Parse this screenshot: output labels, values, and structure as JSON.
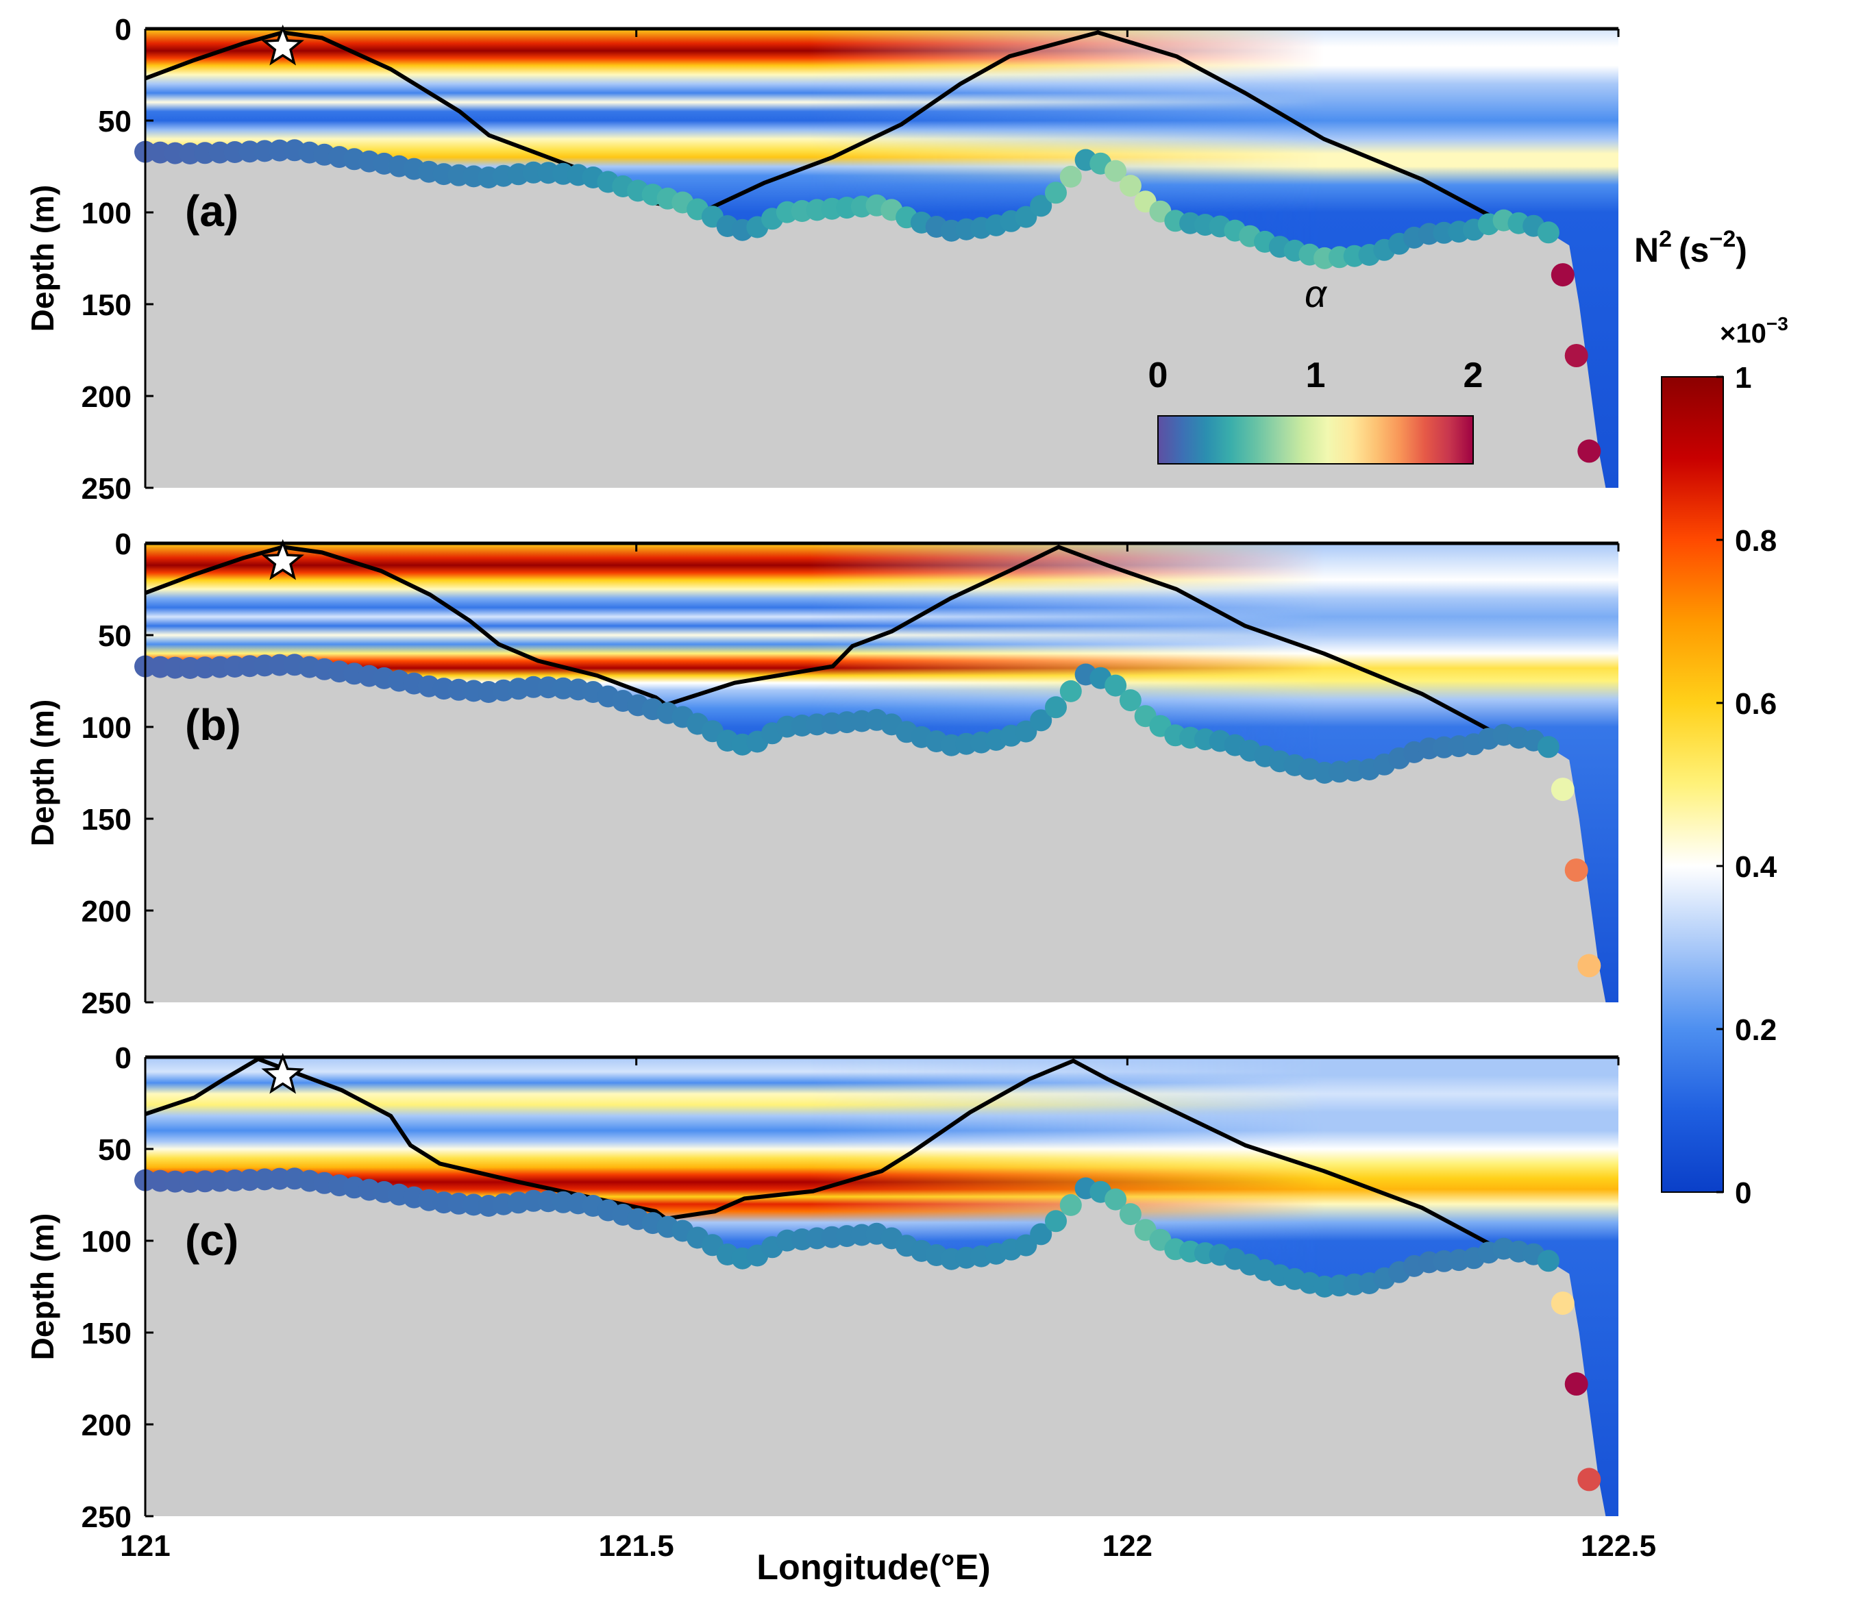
{
  "chart_data": {
    "type": "heatmap",
    "x_label": "Longitude(°E)",
    "y_label": "Depth (m)",
    "x_range": [
      121,
      122.5
    ],
    "y_range": [
      0,
      250
    ],
    "x_ticks": [
      "121",
      "121.5",
      "122",
      "122.5"
    ],
    "y_ticks": [
      "0",
      "50",
      "100",
      "150",
      "200",
      "250"
    ],
    "colorbar": {
      "title_main": "N",
      "title_sup": "2",
      "title_units": "(s",
      "title_units_sup": "−2",
      "title_close": ")",
      "scale_prefix": "×10",
      "scale_exp": "−3",
      "range": [
        0,
        1
      ],
      "tick_labels": [
        "0",
        "0.2",
        "0.4",
        "0.6",
        "0.8",
        "1"
      ],
      "colormap": [
        "#0a3fc8",
        "#1f5fe0",
        "#4d8ff0",
        "#a8c8f8",
        "#ffffff",
        "#fff27a",
        "#ffd11a",
        "#ff9a00",
        "#ff4a00",
        "#c80000",
        "#8c0000"
      ]
    },
    "alpha_legend": {
      "label": "α",
      "range": [
        0,
        2
      ],
      "tick_labels": [
        "0",
        "1",
        "2"
      ],
      "colormap": [
        "#5e4fa2",
        "#3d6fb5",
        "#2b8fb0",
        "#3aaeab",
        "#66c2a5",
        "#9bd6a4",
        "#cceba0",
        "#f2f8b0",
        "#fee89a",
        "#fdc273",
        "#f89457",
        "#e65a47",
        "#c8364e",
        "#9e0142"
      ]
    },
    "bathymetry": [
      [
        121.0,
        67
      ],
      [
        121.04,
        68
      ],
      [
        121.1,
        67
      ],
      [
        121.15,
        66
      ],
      [
        121.2,
        70
      ],
      [
        121.25,
        74
      ],
      [
        121.3,
        79
      ],
      [
        121.35,
        81
      ],
      [
        121.4,
        78
      ],
      [
        121.45,
        80
      ],
      [
        121.5,
        88
      ],
      [
        121.55,
        95
      ],
      [
        121.58,
        103
      ],
      [
        121.6,
        110
      ],
      [
        121.62,
        109
      ],
      [
        121.65,
        100
      ],
      [
        121.7,
        98
      ],
      [
        121.75,
        96
      ],
      [
        121.78,
        104
      ],
      [
        121.82,
        110
      ],
      [
        121.86,
        108
      ],
      [
        121.9,
        102
      ],
      [
        121.93,
        88
      ],
      [
        121.96,
        70
      ],
      [
        121.99,
        78
      ],
      [
        122.02,
        95
      ],
      [
        122.05,
        105
      ],
      [
        122.1,
        108
      ],
      [
        122.15,
        118
      ],
      [
        122.2,
        125
      ],
      [
        122.25,
        123
      ],
      [
        122.3,
        112
      ],
      [
        122.35,
        110
      ],
      [
        122.38,
        104
      ],
      [
        122.42,
        108
      ],
      [
        122.45,
        118
      ],
      [
        122.46,
        150
      ],
      [
        122.47,
        190
      ],
      [
        122.48,
        230
      ],
      [
        122.487,
        250
      ]
    ],
    "panels": [
      {
        "label": "(a)",
        "star": [
          121.14,
          10
        ],
        "line_left": [
          [
            121.0,
            27
          ],
          [
            121.05,
            17
          ],
          [
            121.1,
            8
          ],
          [
            121.14,
            2
          ],
          [
            121.18,
            5
          ],
          [
            121.25,
            22
          ],
          [
            121.32,
            45
          ],
          [
            121.35,
            58
          ],
          [
            121.4,
            68
          ],
          [
            121.46,
            80
          ],
          [
            121.52,
            95
          ],
          [
            121.57,
            99
          ]
        ],
        "line_right": [
          [
            121.57,
            99
          ],
          [
            121.63,
            84
          ],
          [
            121.7,
            70
          ],
          [
            121.77,
            52
          ],
          [
            121.83,
            30
          ],
          [
            121.88,
            15
          ],
          [
            121.97,
            2
          ],
          [
            122.05,
            15
          ],
          [
            122.12,
            35
          ],
          [
            122.2,
            60
          ],
          [
            122.3,
            82
          ],
          [
            122.37,
            102
          ],
          [
            122.38,
            104
          ]
        ],
        "alpha_profile": [
          [
            121.0,
            0.1
          ],
          [
            121.25,
            0.2
          ],
          [
            121.45,
            0.3
          ],
          [
            121.55,
            0.55
          ],
          [
            121.6,
            0.25
          ],
          [
            121.66,
            0.5
          ],
          [
            121.72,
            0.45
          ],
          [
            121.76,
            0.6
          ],
          [
            121.8,
            0.25
          ],
          [
            121.92,
            0.35
          ],
          [
            121.94,
            0.8
          ],
          [
            121.96,
            0.3
          ],
          [
            121.99,
            0.8
          ],
          [
            122.02,
            0.9
          ],
          [
            122.06,
            0.35
          ],
          [
            122.1,
            0.4
          ],
          [
            122.12,
            0.55
          ],
          [
            122.16,
            0.35
          ],
          [
            122.2,
            0.6
          ],
          [
            122.24,
            0.4
          ],
          [
            122.3,
            0.25
          ],
          [
            122.36,
            0.35
          ],
          [
            122.38,
            0.55
          ],
          [
            122.42,
            0.3
          ],
          [
            122.44,
            0.6
          ],
          [
            122.45,
            2.0
          ],
          [
            122.48,
            2.0
          ]
        ],
        "deep_alpha": [
          1.98,
          1.95,
          1.98
        ],
        "n2_bands": [
          [
            0,
            0.6
          ],
          [
            8,
            0.85
          ],
          [
            12,
            0.98
          ],
          [
            16,
            0.82
          ],
          [
            20,
            0.62
          ],
          [
            25,
            0.45
          ],
          [
            30,
            0.3
          ],
          [
            35,
            0.18
          ],
          [
            40,
            0.42
          ],
          [
            45,
            0.15
          ],
          [
            50,
            0.12
          ],
          [
            55,
            0.28
          ],
          [
            60,
            0.45
          ],
          [
            66,
            0.55
          ],
          [
            70,
            0.62
          ],
          [
            75,
            0.3
          ],
          [
            80,
            0.2
          ],
          [
            90,
            0.15
          ],
          [
            100,
            0.1
          ],
          [
            120,
            0.08
          ],
          [
            160,
            0.06
          ],
          [
            250,
            0.06
          ]
        ],
        "n2_bands_right": [
          [
            0,
            0.35
          ],
          [
            10,
            0.4
          ],
          [
            20,
            0.4
          ],
          [
            30,
            0.3
          ],
          [
            40,
            0.25
          ],
          [
            50,
            0.2
          ],
          [
            60,
            0.3
          ],
          [
            68,
            0.45
          ],
          [
            75,
            0.45
          ],
          [
            85,
            0.2
          ],
          [
            100,
            0.1
          ],
          [
            250,
            0.06
          ]
        ]
      },
      {
        "label": "(b)",
        "star": [
          121.14,
          10
        ],
        "line_left": [
          [
            121.0,
            27
          ],
          [
            121.05,
            17
          ],
          [
            121.1,
            8
          ],
          [
            121.14,
            2
          ],
          [
            121.18,
            5
          ],
          [
            121.24,
            15
          ],
          [
            121.29,
            28
          ],
          [
            121.33,
            42
          ],
          [
            121.36,
            55
          ],
          [
            121.4,
            64
          ],
          [
            121.46,
            72
          ],
          [
            121.52,
            84
          ],
          [
            121.53,
            88
          ]
        ],
        "line_right": [
          [
            121.53,
            88
          ],
          [
            121.6,
            76
          ],
          [
            121.7,
            67
          ],
          [
            121.72,
            56
          ],
          [
            121.76,
            48
          ],
          [
            121.82,
            30
          ],
          [
            121.88,
            15
          ],
          [
            121.93,
            2
          ],
          [
            121.98,
            12
          ],
          [
            122.05,
            25
          ],
          [
            122.12,
            45
          ],
          [
            122.2,
            60
          ],
          [
            122.3,
            82
          ],
          [
            122.37,
            102
          ],
          [
            122.38,
            104
          ]
        ],
        "alpha_profile": [
          [
            121.0,
            0.1
          ],
          [
            121.5,
            0.2
          ],
          [
            121.6,
            0.3
          ],
          [
            121.7,
            0.25
          ],
          [
            121.92,
            0.3
          ],
          [
            121.94,
            0.5
          ],
          [
            121.96,
            0.2
          ],
          [
            121.99,
            0.45
          ],
          [
            122.02,
            0.5
          ],
          [
            122.1,
            0.3
          ],
          [
            122.2,
            0.25
          ],
          [
            122.3,
            0.2
          ],
          [
            122.42,
            0.25
          ],
          [
            122.44,
            0.4
          ]
        ],
        "deep_alpha": [
          1.05,
          1.6,
          1.4
        ],
        "n2_bands": [
          [
            0,
            0.6
          ],
          [
            8,
            0.85
          ],
          [
            12,
            0.98
          ],
          [
            16,
            0.82
          ],
          [
            20,
            0.6
          ],
          [
            25,
            0.45
          ],
          [
            30,
            0.25
          ],
          [
            35,
            0.15
          ],
          [
            40,
            0.35
          ],
          [
            45,
            0.15
          ],
          [
            50,
            0.42
          ],
          [
            55,
            0.2
          ],
          [
            60,
            0.5
          ],
          [
            64,
            0.8
          ],
          [
            68,
            0.95
          ],
          [
            72,
            0.6
          ],
          [
            76,
            0.4
          ],
          [
            80,
            0.3
          ],
          [
            90,
            0.2
          ],
          [
            100,
            0.12
          ],
          [
            120,
            0.08
          ],
          [
            160,
            0.06
          ],
          [
            250,
            0.06
          ]
        ],
        "n2_bands_right": [
          [
            0,
            0.3
          ],
          [
            10,
            0.35
          ],
          [
            20,
            0.4
          ],
          [
            30,
            0.3
          ],
          [
            40,
            0.25
          ],
          [
            50,
            0.3
          ],
          [
            60,
            0.4
          ],
          [
            68,
            0.55
          ],
          [
            75,
            0.5
          ],
          [
            85,
            0.3
          ],
          [
            100,
            0.15
          ],
          [
            250,
            0.06
          ]
        ]
      },
      {
        "label": "(c)",
        "star": [
          121.14,
          10
        ],
        "line_left": [
          [
            121.0,
            31
          ],
          [
            121.05,
            22
          ],
          [
            121.08,
            12
          ],
          [
            121.115,
            1
          ],
          [
            121.14,
            6
          ],
          [
            121.2,
            18
          ],
          [
            121.25,
            32
          ],
          [
            121.27,
            48
          ],
          [
            121.3,
            58
          ],
          [
            121.38,
            68
          ],
          [
            121.45,
            76
          ],
          [
            121.52,
            84
          ],
          [
            121.53,
            88
          ]
        ],
        "line_right": [
          [
            121.53,
            88
          ],
          [
            121.58,
            84
          ],
          [
            121.61,
            77
          ],
          [
            121.68,
            73
          ],
          [
            121.75,
            62
          ],
          [
            121.78,
            52
          ],
          [
            121.84,
            30
          ],
          [
            121.9,
            12
          ],
          [
            121.945,
            2
          ],
          [
            121.98,
            12
          ],
          [
            122.05,
            30
          ],
          [
            122.12,
            48
          ],
          [
            122.2,
            62
          ],
          [
            122.3,
            82
          ],
          [
            122.37,
            102
          ],
          [
            122.38,
            104
          ]
        ],
        "alpha_profile": [
          [
            121.0,
            0.1
          ],
          [
            121.5,
            0.2
          ],
          [
            121.6,
            0.3
          ],
          [
            121.7,
            0.25
          ],
          [
            121.92,
            0.3
          ],
          [
            121.94,
            0.6
          ],
          [
            121.96,
            0.25
          ],
          [
            121.99,
            0.55
          ],
          [
            122.02,
            0.6
          ],
          [
            122.1,
            0.3
          ],
          [
            122.2,
            0.3
          ],
          [
            122.3,
            0.2
          ],
          [
            122.42,
            0.25
          ],
          [
            122.44,
            0.4
          ]
        ],
        "deep_alpha": [
          1.28,
          1.98,
          1.75
        ],
        "n2_bands": [
          [
            0,
            0.3
          ],
          [
            8,
            0.35
          ],
          [
            14,
            0.2
          ],
          [
            20,
            0.45
          ],
          [
            26,
            0.5
          ],
          [
            32,
            0.3
          ],
          [
            40,
            0.2
          ],
          [
            46,
            0.3
          ],
          [
            50,
            0.42
          ],
          [
            55,
            0.55
          ],
          [
            60,
            0.65
          ],
          [
            64,
            0.82
          ],
          [
            68,
            0.95
          ],
          [
            72,
            0.85
          ],
          [
            76,
            0.6
          ],
          [
            80,
            0.85
          ],
          [
            84,
            0.75
          ],
          [
            90,
            0.3
          ],
          [
            100,
            0.15
          ],
          [
            120,
            0.08
          ],
          [
            160,
            0.06
          ],
          [
            250,
            0.06
          ]
        ],
        "n2_bands_right": [
          [
            0,
            0.3
          ],
          [
            10,
            0.3
          ],
          [
            20,
            0.35
          ],
          [
            30,
            0.3
          ],
          [
            40,
            0.3
          ],
          [
            50,
            0.4
          ],
          [
            58,
            0.5
          ],
          [
            66,
            0.6
          ],
          [
            72,
            0.65
          ],
          [
            80,
            0.45
          ],
          [
            90,
            0.25
          ],
          [
            100,
            0.12
          ],
          [
            250,
            0.06
          ]
        ]
      }
    ]
  }
}
